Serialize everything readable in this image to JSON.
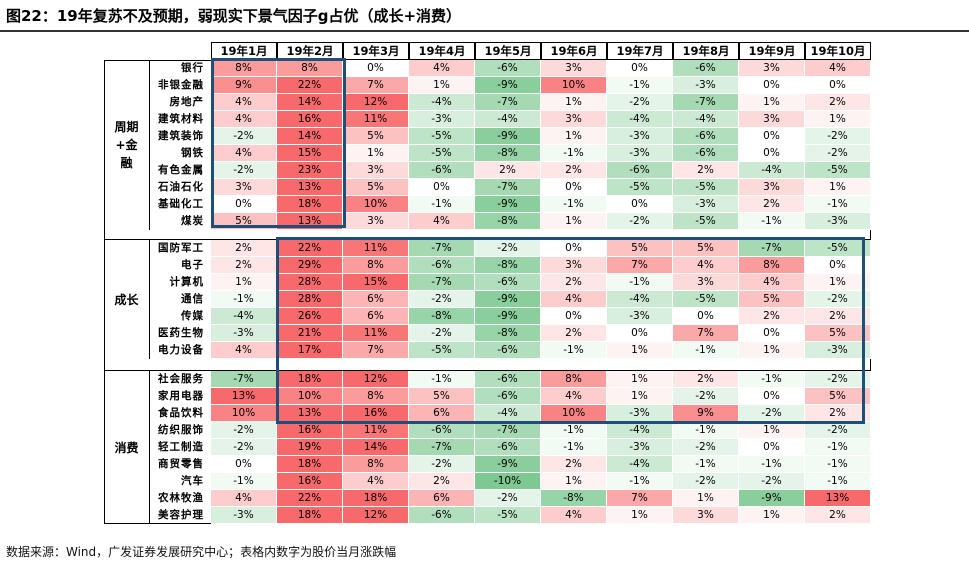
{
  "title": "图22：19年复苏不及预期，弱现实下景气因子g占优（成长+消费）",
  "source": "数据来源：Wind，广发证券发展研究中心；表格内数字为股价当月涨跌幅",
  "chart_data": {
    "type": "table",
    "columns": [
      "19年1月",
      "19年2月",
      "19年3月",
      "19年4月",
      "19年5月",
      "19年6月",
      "19年7月",
      "19年8月",
      "19年9月",
      "19年10月"
    ],
    "groups": [
      {
        "name": "周期+金融",
        "rows": [
          {
            "label": "银行",
            "values": [
              8,
              8,
              0,
              4,
              -6,
              3,
              0,
              -6,
              3,
              4
            ]
          },
          {
            "label": "非银金融",
            "values": [
              9,
              22,
              7,
              1,
              -9,
              10,
              -1,
              -3,
              0,
              0
            ]
          },
          {
            "label": "房地产",
            "values": [
              4,
              14,
              12,
              -4,
              -7,
              1,
              -2,
              -7,
              1,
              2
            ]
          },
          {
            "label": "建筑材料",
            "values": [
              4,
              16,
              11,
              -3,
              -4,
              3,
              -4,
              -4,
              3,
              1
            ]
          },
          {
            "label": "建筑装饰",
            "values": [
              -2,
              14,
              5,
              -5,
              -9,
              1,
              -3,
              -6,
              0,
              -2
            ]
          },
          {
            "label": "钢铁",
            "values": [
              4,
              15,
              1,
              -5,
              -8,
              -1,
              -3,
              -6,
              0,
              -2
            ]
          },
          {
            "label": "有色金属",
            "values": [
              -2,
              23,
              3,
              -6,
              2,
              2,
              -6,
              2,
              -4,
              -5
            ]
          },
          {
            "label": "石油石化",
            "values": [
              3,
              13,
              5,
              0,
              -7,
              0,
              -5,
              -5,
              3,
              1
            ]
          },
          {
            "label": "基础化工",
            "values": [
              0,
              18,
              10,
              -1,
              -9,
              -1,
              0,
              -3,
              2,
              -1
            ]
          },
          {
            "label": "煤炭",
            "values": [
              5,
              13,
              3,
              4,
              -8,
              1,
              -2,
              -5,
              -1,
              -3
            ]
          }
        ]
      },
      {
        "name": "成长",
        "rows": [
          {
            "label": "国防军工",
            "values": [
              2,
              22,
              11,
              -7,
              -2,
              0,
              5,
              5,
              -7,
              -5
            ]
          },
          {
            "label": "电子",
            "values": [
              2,
              29,
              8,
              -6,
              -8,
              3,
              7,
              4,
              8,
              0
            ]
          },
          {
            "label": "计算机",
            "values": [
              1,
              28,
              15,
              -7,
              -6,
              2,
              -1,
              3,
              4,
              1
            ]
          },
          {
            "label": "通信",
            "values": [
              -1,
              28,
              6,
              -2,
              -9,
              4,
              -4,
              -5,
              5,
              -2
            ]
          },
          {
            "label": "传媒",
            "values": [
              -4,
              26,
              6,
              -8,
              -9,
              0,
              -3,
              0,
              2,
              2
            ]
          },
          {
            "label": "医药生物",
            "values": [
              -3,
              21,
              11,
              -2,
              -8,
              2,
              0,
              7,
              0,
              5
            ]
          },
          {
            "label": "电力设备",
            "values": [
              4,
              17,
              7,
              -5,
              -6,
              -1,
              1,
              -1,
              1,
              -3
            ]
          }
        ]
      },
      {
        "name": "消费",
        "rows": [
          {
            "label": "社会服务",
            "values": [
              -7,
              18,
              12,
              -1,
              -6,
              8,
              1,
              2,
              -1,
              -2
            ]
          },
          {
            "label": "家用电器",
            "values": [
              13,
              10,
              8,
              5,
              -6,
              4,
              1,
              -2,
              0,
              5
            ]
          },
          {
            "label": "食品饮料",
            "values": [
              10,
              13,
              16,
              6,
              -4,
              10,
              -3,
              9,
              -2,
              2
            ]
          },
          {
            "label": "纺织服饰",
            "values": [
              -2,
              16,
              11,
              -6,
              -7,
              -1,
              -4,
              -1,
              1,
              -2
            ]
          },
          {
            "label": "轻工制造",
            "values": [
              -2,
              19,
              14,
              -7,
              -6,
              -1,
              -3,
              -2,
              0,
              -1
            ]
          },
          {
            "label": "商贸零售",
            "values": [
              0,
              18,
              8,
              -2,
              -9,
              2,
              -4,
              -1,
              -1,
              -1
            ]
          },
          {
            "label": "汽车",
            "values": [
              -1,
              16,
              4,
              2,
              -10,
              1,
              -1,
              -2,
              -2,
              -1
            ]
          },
          {
            "label": "农林牧渔",
            "values": [
              4,
              22,
              18,
              6,
              -2,
              -8,
              7,
              1,
              -9,
              13
            ]
          },
          {
            "label": "美容护理",
            "values": [
              -3,
              18,
              12,
              -6,
              -5,
              4,
              1,
              3,
              1,
              2
            ]
          }
        ]
      }
    ],
    "value_suffix": "%",
    "colors": {
      "positive": "#f8696b",
      "negative": "#63be7b",
      "neutral": "#ffffff"
    }
  }
}
